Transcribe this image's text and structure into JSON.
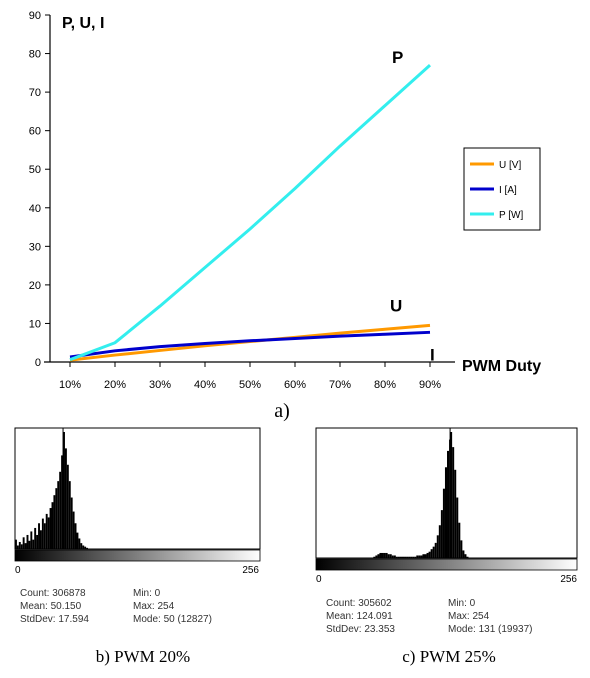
{
  "chart_data": [
    {
      "type": "line",
      "y_title": "P, U, I",
      "x_title": "PWM Duty",
      "caption": "a)",
      "x": [
        "10%",
        "20%",
        "30%",
        "40%",
        "50%",
        "60%",
        "70%",
        "80%",
        "90%"
      ],
      "ylim": [
        0,
        90
      ],
      "y_ticks": [
        0,
        10,
        20,
        30,
        40,
        50,
        60,
        70,
        80,
        90
      ],
      "legend": "right",
      "series": [
        {
          "name": "U [V]",
          "label": "U",
          "color": "#ff9900",
          "values": [
            0.5,
            1.8,
            3.0,
            4.2,
            5.3,
            6.4,
            7.5,
            8.5,
            9.5
          ]
        },
        {
          "name": "I [A]",
          "label": "I",
          "color": "#0000cc",
          "values": [
            1.3,
            2.9,
            4.0,
            4.8,
            5.5,
            6.1,
            6.7,
            7.2,
            7.7
          ]
        },
        {
          "name": "P [W]",
          "label": "P",
          "color": "#33eeee",
          "values": [
            0.6,
            5.0,
            14.5,
            24.5,
            34.5,
            45.0,
            56.0,
            66.5,
            77.0
          ]
        }
      ]
    },
    {
      "type": "bar",
      "caption": "b) PWM 20%",
      "x_min_label": "0",
      "x_max_label": "256",
      "xlim": [
        0,
        255
      ],
      "ylim": [
        0,
        1
      ],
      "peak": 50,
      "bins": [
        {
          "x": 0,
          "v": 0.08
        },
        {
          "x": 2,
          "v": 0.03
        },
        {
          "x": 4,
          "v": 0.06
        },
        {
          "x": 6,
          "v": 0.04
        },
        {
          "x": 8,
          "v": 0.1
        },
        {
          "x": 10,
          "v": 0.05
        },
        {
          "x": 12,
          "v": 0.12
        },
        {
          "x": 14,
          "v": 0.07
        },
        {
          "x": 16,
          "v": 0.15
        },
        {
          "x": 18,
          "v": 0.08
        },
        {
          "x": 20,
          "v": 0.18
        },
        {
          "x": 22,
          "v": 0.12
        },
        {
          "x": 24,
          "v": 0.22
        },
        {
          "x": 26,
          "v": 0.16
        },
        {
          "x": 28,
          "v": 0.26
        },
        {
          "x": 30,
          "v": 0.22
        },
        {
          "x": 32,
          "v": 0.3
        },
        {
          "x": 34,
          "v": 0.27
        },
        {
          "x": 36,
          "v": 0.35
        },
        {
          "x": 38,
          "v": 0.4
        },
        {
          "x": 40,
          "v": 0.46
        },
        {
          "x": 42,
          "v": 0.52
        },
        {
          "x": 44,
          "v": 0.58
        },
        {
          "x": 46,
          "v": 0.66
        },
        {
          "x": 48,
          "v": 0.8
        },
        {
          "x": 50,
          "v": 1.0
        },
        {
          "x": 52,
          "v": 0.86
        },
        {
          "x": 54,
          "v": 0.72
        },
        {
          "x": 56,
          "v": 0.58
        },
        {
          "x": 58,
          "v": 0.44
        },
        {
          "x": 60,
          "v": 0.32
        },
        {
          "x": 62,
          "v": 0.22
        },
        {
          "x": 64,
          "v": 0.14
        },
        {
          "x": 66,
          "v": 0.09
        },
        {
          "x": 68,
          "v": 0.05
        },
        {
          "x": 70,
          "v": 0.03
        },
        {
          "x": 72,
          "v": 0.02
        },
        {
          "x": 74,
          "v": 0.01
        }
      ],
      "stats": {
        "count": "Count: 306878",
        "mean": "Mean: 50.150",
        "stddev": "StdDev: 17.594",
        "min": "Min: 0",
        "max": "Max: 254",
        "mode": "Mode: 50 (12827)"
      }
    },
    {
      "type": "bar",
      "caption": "c) PWM 25%",
      "x_min_label": "0",
      "x_max_label": "256",
      "xlim": [
        0,
        255
      ],
      "ylim": [
        0,
        1
      ],
      "peak": 131,
      "bins": [
        {
          "x": 56,
          "v": 0.01
        },
        {
          "x": 58,
          "v": 0.02
        },
        {
          "x": 60,
          "v": 0.03
        },
        {
          "x": 62,
          "v": 0.04
        },
        {
          "x": 64,
          "v": 0.04
        },
        {
          "x": 66,
          "v": 0.04
        },
        {
          "x": 68,
          "v": 0.04
        },
        {
          "x": 70,
          "v": 0.03
        },
        {
          "x": 72,
          "v": 0.03
        },
        {
          "x": 74,
          "v": 0.02
        },
        {
          "x": 76,
          "v": 0.02
        },
        {
          "x": 78,
          "v": 0.01
        },
        {
          "x": 80,
          "v": 0.01
        },
        {
          "x": 82,
          "v": 0.01
        },
        {
          "x": 84,
          "v": 0.01
        },
        {
          "x": 86,
          "v": 0.01
        },
        {
          "x": 88,
          "v": 0.01
        },
        {
          "x": 90,
          "v": 0.01
        },
        {
          "x": 92,
          "v": 0.01
        },
        {
          "x": 94,
          "v": 0.01
        },
        {
          "x": 96,
          "v": 0.01
        },
        {
          "x": 98,
          "v": 0.02
        },
        {
          "x": 100,
          "v": 0.02
        },
        {
          "x": 102,
          "v": 0.02
        },
        {
          "x": 104,
          "v": 0.03
        },
        {
          "x": 106,
          "v": 0.03
        },
        {
          "x": 108,
          "v": 0.04
        },
        {
          "x": 110,
          "v": 0.05
        },
        {
          "x": 112,
          "v": 0.07
        },
        {
          "x": 114,
          "v": 0.09
        },
        {
          "x": 116,
          "v": 0.12
        },
        {
          "x": 118,
          "v": 0.18
        },
        {
          "x": 120,
          "v": 0.26
        },
        {
          "x": 122,
          "v": 0.38
        },
        {
          "x": 124,
          "v": 0.55
        },
        {
          "x": 126,
          "v": 0.72
        },
        {
          "x": 128,
          "v": 0.85
        },
        {
          "x": 130,
          "v": 0.94
        },
        {
          "x": 131,
          "v": 1.0
        },
        {
          "x": 133,
          "v": 0.88
        },
        {
          "x": 135,
          "v": 0.7
        },
        {
          "x": 137,
          "v": 0.48
        },
        {
          "x": 139,
          "v": 0.28
        },
        {
          "x": 141,
          "v": 0.14
        },
        {
          "x": 143,
          "v": 0.06
        },
        {
          "x": 145,
          "v": 0.03
        },
        {
          "x": 147,
          "v": 0.01
        }
      ],
      "stats": {
        "count": "Count: 305602",
        "mean": "Mean: 124.091",
        "stddev": "StdDev: 23.353",
        "min": "Min: 0",
        "max": "Max: 254",
        "mode": "Mode: 131 (19937)"
      }
    }
  ]
}
